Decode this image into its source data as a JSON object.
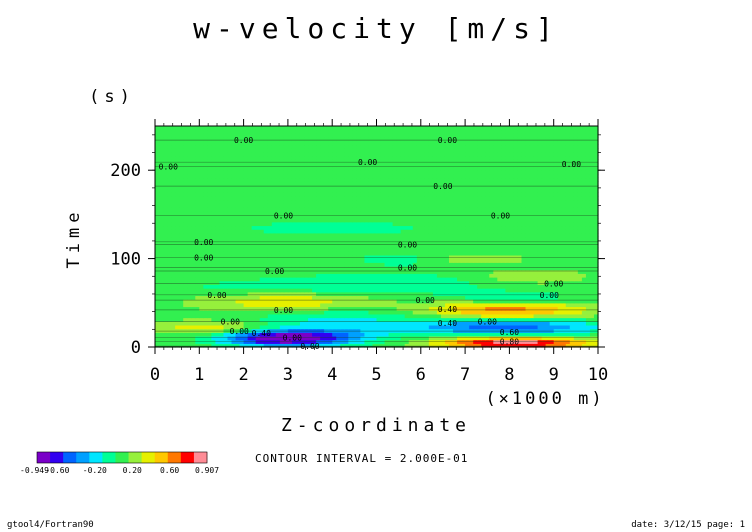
{
  "chart_data": {
    "type": "heatmap",
    "title": "w-velocity [m/s]",
    "xlabel": "Z-coordinate",
    "xunit": "(×1000 m)",
    "ylabel": "Time",
    "yunit": "(s)",
    "xlim": [
      0,
      10
    ],
    "ylim": [
      0,
      250
    ],
    "x_ticks": [
      "0",
      "1",
      "2",
      "3",
      "4",
      "5",
      "6",
      "7",
      "8",
      "9",
      "10"
    ],
    "y_ticks": [
      "0",
      "100",
      "200"
    ],
    "y_tick_values": [
      0,
      100,
      200
    ],
    "contour_interval_text": "CONTOUR INTERVAL = 2.000E-01",
    "contour_labels": [
      {
        "text": "0.00",
        "x": 2.0,
        "y": 234
      },
      {
        "text": "0.00",
        "x": 6.6,
        "y": 234
      },
      {
        "text": "0.00",
        "x": 0.3,
        "y": 204
      },
      {
        "text": "0.00",
        "x": 4.8,
        "y": 209
      },
      {
        "text": "0.00",
        "x": 9.4,
        "y": 207
      },
      {
        "text": "0.00",
        "x": 6.5,
        "y": 182
      },
      {
        "text": "0.00",
        "x": 2.9,
        "y": 149
      },
      {
        "text": "0.00",
        "x": 7.8,
        "y": 149
      },
      {
        "text": "0.00",
        "x": 1.1,
        "y": 119
      },
      {
        "text": "0.00",
        "x": 5.7,
        "y": 116
      },
      {
        "text": "0.00",
        "x": 1.1,
        "y": 101
      },
      {
        "text": "0.00",
        "x": 5.7,
        "y": 90
      },
      {
        "text": "0.00",
        "x": 2.7,
        "y": 86
      },
      {
        "text": "0.00",
        "x": 9.0,
        "y": 72
      },
      {
        "text": "0.00",
        "x": 1.4,
        "y": 59
      },
      {
        "text": "0.00",
        "x": 8.9,
        "y": 59
      },
      {
        "text": "0.00",
        "x": 6.1,
        "y": 53
      },
      {
        "text": "0.00",
        "x": 2.9,
        "y": 42
      },
      {
        "text": "0.40",
        "x": 6.6,
        "y": 43
      },
      {
        "text": "0.00",
        "x": 1.7,
        "y": 29
      },
      {
        "text": "0.40",
        "x": 6.6,
        "y": 27
      },
      {
        "text": "0.00",
        "x": 7.5,
        "y": 29
      },
      {
        "text": "0.00",
        "x": 1.9,
        "y": 18
      },
      {
        "text": "0.40",
        "x": 2.4,
        "y": 16
      },
      {
        "text": "0.60",
        "x": 8.0,
        "y": 17
      },
      {
        "text": "0.00",
        "x": 3.1,
        "y": 11
      },
      {
        "text": "0.00",
        "x": 3.5,
        "y": 1
      },
      {
        "text": "0.80",
        "x": 8.0,
        "y": 6
      }
    ],
    "colorbar": {
      "colors": [
        "#7a00c8",
        "#3200f0",
        "#0064ff",
        "#00a0ff",
        "#00e6ff",
        "#00ff96",
        "#32f050",
        "#96f03c",
        "#e6f000",
        "#ffc800",
        "#ff7800",
        "#ff0000",
        "#ff8c96"
      ],
      "labels": [
        "-0.949",
        "-0.60",
        "-0.20",
        "0.20",
        "0.60",
        "0.907"
      ]
    },
    "features": [
      {
        "x": 3.0,
        "y": 52,
        "sx": 1.3,
        "sy": 9,
        "a": 0.32
      },
      {
        "x": 1.2,
        "y": 23,
        "sx": 0.8,
        "sy": 5,
        "a": 0.3
      },
      {
        "x": 2.7,
        "y": 10,
        "sx": 0.9,
        "sy": 6,
        "a": -0.75
      },
      {
        "x": 3.8,
        "y": 13,
        "sx": 1.0,
        "sy": 8,
        "a": -0.45
      },
      {
        "x": 4.0,
        "y": 34,
        "sx": 1.4,
        "sy": 8,
        "a": -0.25
      },
      {
        "x": 5.3,
        "y": 72,
        "sx": 1.8,
        "sy": 9,
        "a": -0.2
      },
      {
        "x": 6.3,
        "y": 100,
        "sx": 1.4,
        "sy": 7,
        "a": -0.18
      },
      {
        "x": 4.0,
        "y": 135,
        "sx": 1.6,
        "sy": 6,
        "a": -0.18
      },
      {
        "x": 7.2,
        "y": 100,
        "sx": 0.8,
        "sy": 5,
        "a": 0.3
      },
      {
        "x": 7.9,
        "y": 42,
        "sx": 1.3,
        "sy": 7,
        "a": 0.55
      },
      {
        "x": 7.9,
        "y": 23,
        "sx": 1.6,
        "sy": 7,
        "a": -0.6
      },
      {
        "x": 8.1,
        "y": 5,
        "sx": 1.2,
        "sy": 5,
        "a": 0.9
      },
      {
        "x": 8.1,
        "y": 56,
        "sx": 1.0,
        "sy": 5,
        "a": -0.22
      },
      {
        "x": 8.4,
        "y": 80,
        "sx": 0.9,
        "sy": 6,
        "a": 0.18
      },
      {
        "x": 2.5,
        "y": 67,
        "sx": 1.6,
        "sy": 7,
        "a": -0.15
      }
    ]
  },
  "footer": {
    "left": "gtool4/Fortran90",
    "right": "date: 3/12/15 page: 1"
  }
}
